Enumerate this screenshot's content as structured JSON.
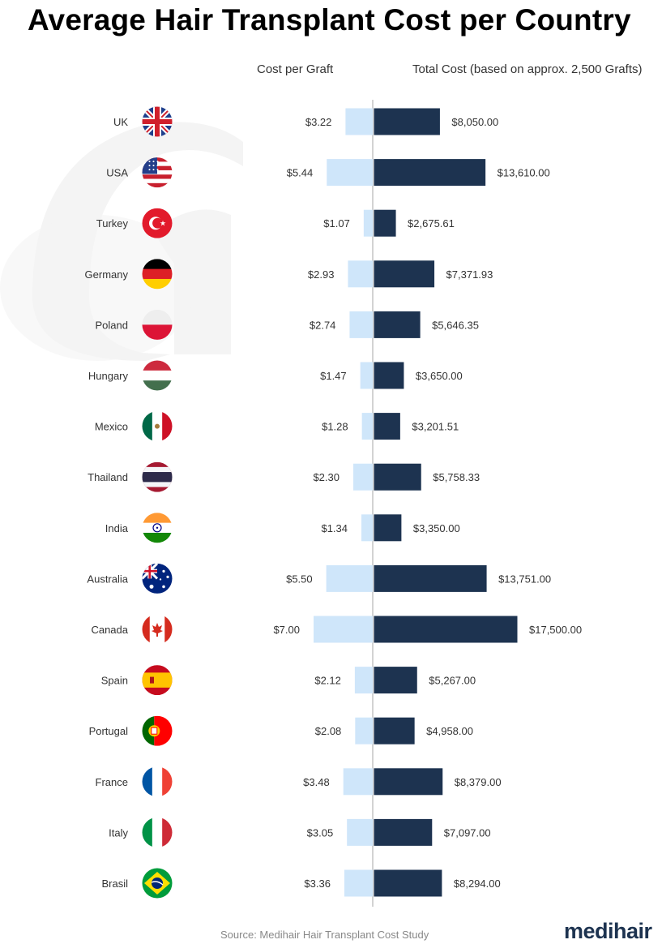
{
  "title": "Average Hair Transplant Cost per Country",
  "headers": {
    "cost_per_graft": "Cost per Graft",
    "total_cost": "Total Cost (based on approx. 2,500 Grafts)"
  },
  "colors": {
    "graft_bar": "#cfe6fa",
    "total_bar": "#1d3350",
    "axis": "#d3d3d3",
    "watermark": "#f4f4f4"
  },
  "chart_data": {
    "type": "bar",
    "title": "Average Hair Transplant Cost per Country",
    "categories": [
      "UK",
      "USA",
      "Turkey",
      "Germany",
      "Poland",
      "Hungary",
      "Mexico",
      "Thailand",
      "India",
      "Australia",
      "Canada",
      "Spain",
      "Portugal",
      "France",
      "Italy",
      "Brasil"
    ],
    "series": [
      {
        "name": "Cost per Graft",
        "direction": "left",
        "values": [
          3.22,
          5.44,
          1.07,
          2.93,
          2.74,
          1.47,
          1.28,
          2.3,
          1.34,
          5.5,
          7.0,
          2.12,
          2.08,
          3.48,
          3.05,
          3.36
        ],
        "labels": [
          "$3.22",
          "$5.44",
          "$1.07",
          "$2.93",
          "$2.74",
          "$1.47",
          "$1.28",
          "$2.30",
          "$1.34",
          "$5.50",
          "$7.00",
          "$2.12",
          "$2.08",
          "$3.48",
          "$3.05",
          "$3.36"
        ]
      },
      {
        "name": "Total Cost (based on approx. 2,500 Grafts)",
        "direction": "right",
        "values": [
          8050.0,
          13610.0,
          2675.61,
          7371.93,
          5646.35,
          3650.0,
          3201.51,
          5758.33,
          3350.0,
          13751.0,
          17500.0,
          5267.0,
          4958.0,
          8379.0,
          7097.0,
          8294.0
        ],
        "labels": [
          "$8,050.00",
          "$13,610.00",
          "$2,675.61",
          "$7,371.93",
          "$5,646.35",
          "$3,650.00",
          "$3,201.51",
          "$5,758.33",
          "$3,350.00",
          "$13,751.00",
          "$17,500.00",
          "$5,267.00",
          "$4,958.00",
          "$8,379.00",
          "$7,097.00",
          "$8,294.00"
        ]
      }
    ],
    "flags": [
      "uk-flag",
      "usa-flag",
      "turkey-flag",
      "germany-flag",
      "poland-flag",
      "hungary-flag",
      "mexico-flag",
      "thailand-flag",
      "india-flag",
      "australia-flag",
      "canada-flag",
      "spain-flag",
      "portugal-flag",
      "france-flag",
      "italy-flag",
      "brasil-flag"
    ]
  },
  "footer": {
    "source": "Source: Medihair Hair Transplant Cost Study",
    "logo": "medihair"
  }
}
